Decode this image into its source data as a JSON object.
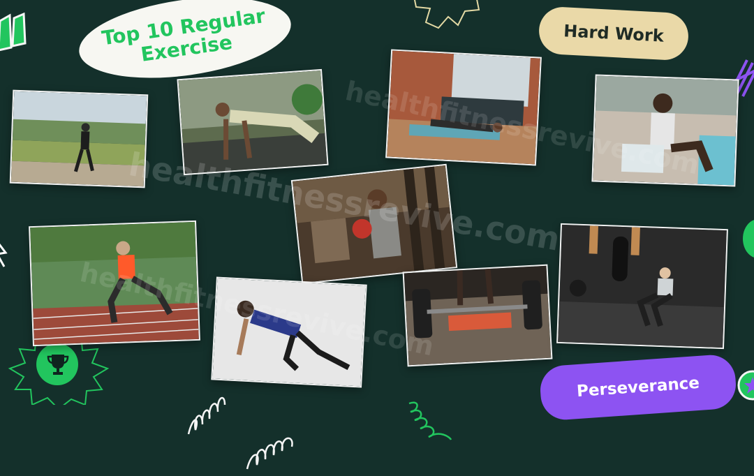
{
  "labels": {
    "title_line1": "Top 10 Regular",
    "title_line2": "Exercise",
    "hard_work": "Hard Work",
    "perseverance": "Perseverance"
  },
  "watermark": "healthfitnessrevive.com",
  "icons": [
    "quote-icon",
    "trophy-icon",
    "star-badge-icon",
    "sunburst-icon",
    "coil-icon",
    "squiggle-icon"
  ],
  "photos": [
    "running",
    "push-up",
    "plank",
    "sit-up",
    "bicep-curl",
    "lunge",
    "mountain-climber",
    "deadlift",
    "squat"
  ],
  "colors": {
    "background": "#14302b",
    "accent_green": "#22c55e",
    "cream": "#ead9a8",
    "purple": "#8d53f2"
  }
}
